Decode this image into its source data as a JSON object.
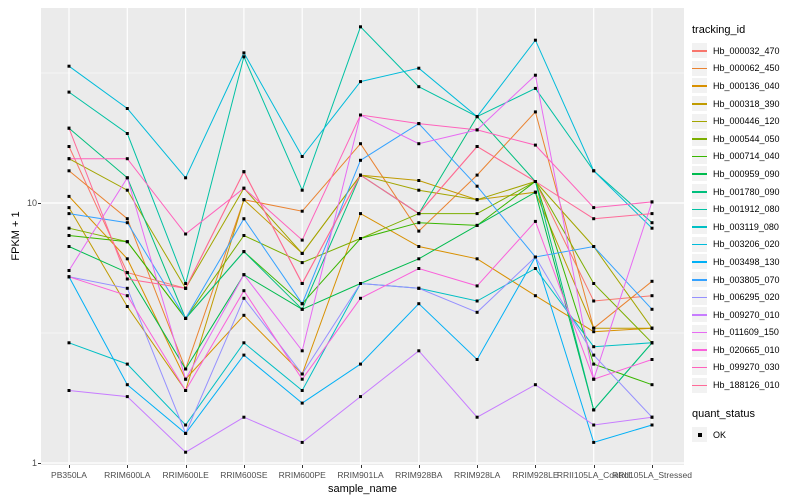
{
  "figure": {
    "x_axis_title": "sample_name",
    "y_axis_title": "FPKM + 1",
    "legend_tracking_title": "tracking_id",
    "legend_quant_title": "quant_status",
    "quant_status_label": "OK"
  },
  "colors": {
    "panel_background": "#EBEBEB",
    "gridline": "#FFFFFF",
    "marker": "#000000",
    "axis_text": "#4D4D4D",
    "tick": "#333333",
    "legend_key_background": "#F2F2F2"
  },
  "chart_data": {
    "type": "line",
    "title": "",
    "xlabel": "sample_name",
    "ylabel": "FPKM + 1",
    "x_scale": "categorical",
    "y_scale": "log10",
    "ylim": [
      1,
      56.2
    ],
    "y_major_ticks": [
      {
        "label": "10",
        "value": 10
      },
      {
        "label": "1",
        "value": 1
      }
    ],
    "y_minor_gridlines": [
      31.62,
      3.162
    ],
    "grid": true,
    "legend_position": "right",
    "marker": "black-square",
    "categories": [
      "PB350LA",
      "RRIM600LA",
      "RRIM600LE",
      "RRIM600SE",
      "RRIM600PE",
      "RRIM901LA",
      "RRIM928BA",
      "RRIM928LA",
      "RRIM928LE",
      "RRII105LA_Control",
      "RRII105LA_Stressed"
    ],
    "series": [
      {
        "name": "Hb_000032_470",
        "color": "#F8766D",
        "values": [
          16.5,
          5.4,
          4.7,
          13.2,
          4.9,
          12.8,
          9.1,
          16.5,
          12.1,
          4.2,
          4.4
        ]
      },
      {
        "name": "Hb_000062_450",
        "color": "#EA8331",
        "values": [
          13.3,
          8.7,
          2.3,
          10.3,
          9.3,
          16.9,
          7.8,
          12.8,
          22.4,
          3.3,
          5.0
        ]
      },
      {
        "name": "Hb_000136_040",
        "color": "#D89000",
        "values": [
          10.6,
          6.1,
          2.1,
          3.7,
          2.2,
          9.1,
          6.8,
          6.1,
          4.4,
          3.2,
          3.3
        ]
      },
      {
        "name": "Hb_000318_390",
        "color": "#C09B00",
        "values": [
          9.6,
          4.0,
          1.9,
          10.3,
          6.4,
          12.8,
          12.2,
          10.3,
          11.0,
          3.3,
          3.3
        ]
      },
      {
        "name": "Hb_000446_120",
        "color": "#A3A500",
        "values": [
          14.8,
          11.2,
          4.7,
          11.4,
          6.4,
          12.8,
          11.2,
          10.3,
          12.1,
          6.8,
          3.3
        ]
      },
      {
        "name": "Hb_000544_050",
        "color": "#7CAE00",
        "values": [
          8.0,
          7.1,
          3.6,
          7.5,
          5.9,
          7.3,
          9.1,
          9.1,
          12.1,
          4.9,
          2.9
        ]
      },
      {
        "name": "Hb_000714_040",
        "color": "#39B600",
        "values": [
          7.5,
          7.1,
          3.6,
          6.5,
          4.1,
          7.3,
          8.4,
          8.2,
          12.1,
          2.4,
          2.0
        ]
      },
      {
        "name": "Hb_000959_090",
        "color": "#00BB4E",
        "values": [
          6.8,
          5.4,
          2.3,
          5.3,
          3.9,
          4.9,
          6.1,
          8.2,
          11.0,
          1.6,
          2.9
        ]
      },
      {
        "name": "Hb_001780_090",
        "color": "#00BF7D",
        "values": [
          19.4,
          12.5,
          3.6,
          6.5,
          3.9,
          12.8,
          9.1,
          21.5,
          12.1,
          1.6,
          2.9
        ]
      },
      {
        "name": "Hb_001912_080",
        "color": "#00C1A3",
        "values": [
          26.7,
          18.5,
          4.9,
          36.5,
          11.2,
          47.6,
          28.0,
          21.5,
          27.6,
          13.3,
          8.4
        ]
      },
      {
        "name": "Hb_003119_080",
        "color": "#00BFC4",
        "values": [
          2.9,
          2.4,
          1.4,
          2.9,
          1.9,
          4.9,
          4.7,
          4.2,
          5.6,
          2.8,
          2.9
        ]
      },
      {
        "name": "Hb_003206_020",
        "color": "#00BBDA",
        "values": [
          33.6,
          23.1,
          12.5,
          37.8,
          15.1,
          29.3,
          33.0,
          21.5,
          42.3,
          13.3,
          8.0
        ]
      },
      {
        "name": "Hb_003498_130",
        "color": "#00B0F6",
        "values": [
          5.2,
          2.0,
          1.3,
          2.6,
          1.7,
          2.4,
          4.1,
          2.5,
          6.2,
          1.2,
          1.4
        ]
      },
      {
        "name": "Hb_003805_070",
        "color": "#35A2FF",
        "values": [
          9.1,
          8.4,
          3.6,
          8.7,
          4.1,
          14.6,
          20.2,
          11.6,
          6.2,
          6.8,
          3.9
        ]
      },
      {
        "name": "Hb_006295_020",
        "color": "#9590FF",
        "values": [
          5.2,
          4.7,
          1.3,
          4.3,
          2.2,
          4.9,
          4.7,
          3.8,
          6.2,
          2.6,
          1.5
        ]
      },
      {
        "name": "Hb_009270_010",
        "color": "#C77CFF",
        "values": [
          1.9,
          1.8,
          1.1,
          1.5,
          1.2,
          1.8,
          2.7,
          1.5,
          2.0,
          1.4,
          1.5
        ]
      },
      {
        "name": "Hb_011609_150",
        "color": "#E76BF3",
        "values": [
          5.5,
          12.5,
          2.1,
          5.3,
          2.7,
          21.8,
          16.9,
          19.1,
          31.0,
          2.1,
          10.1
        ]
      },
      {
        "name": "Hb_020665_010",
        "color": "#FA62DB",
        "values": [
          5.2,
          4.4,
          1.9,
          4.6,
          2.1,
          4.3,
          5.6,
          4.8,
          8.5,
          2.1,
          2.5
        ]
      },
      {
        "name": "Hb_099270_030",
        "color": "#FF62BC",
        "values": [
          14.8,
          14.8,
          7.6,
          11.4,
          7.2,
          21.8,
          20.2,
          19.1,
          16.7,
          9.6,
          10.1
        ]
      },
      {
        "name": "Hb_188126_010",
        "color": "#FF6A98",
        "values": [
          19.4,
          5.1,
          4.7,
          13.2,
          4.9,
          12.8,
          9.1,
          16.5,
          12.1,
          8.7,
          9.1
        ]
      }
    ]
  }
}
